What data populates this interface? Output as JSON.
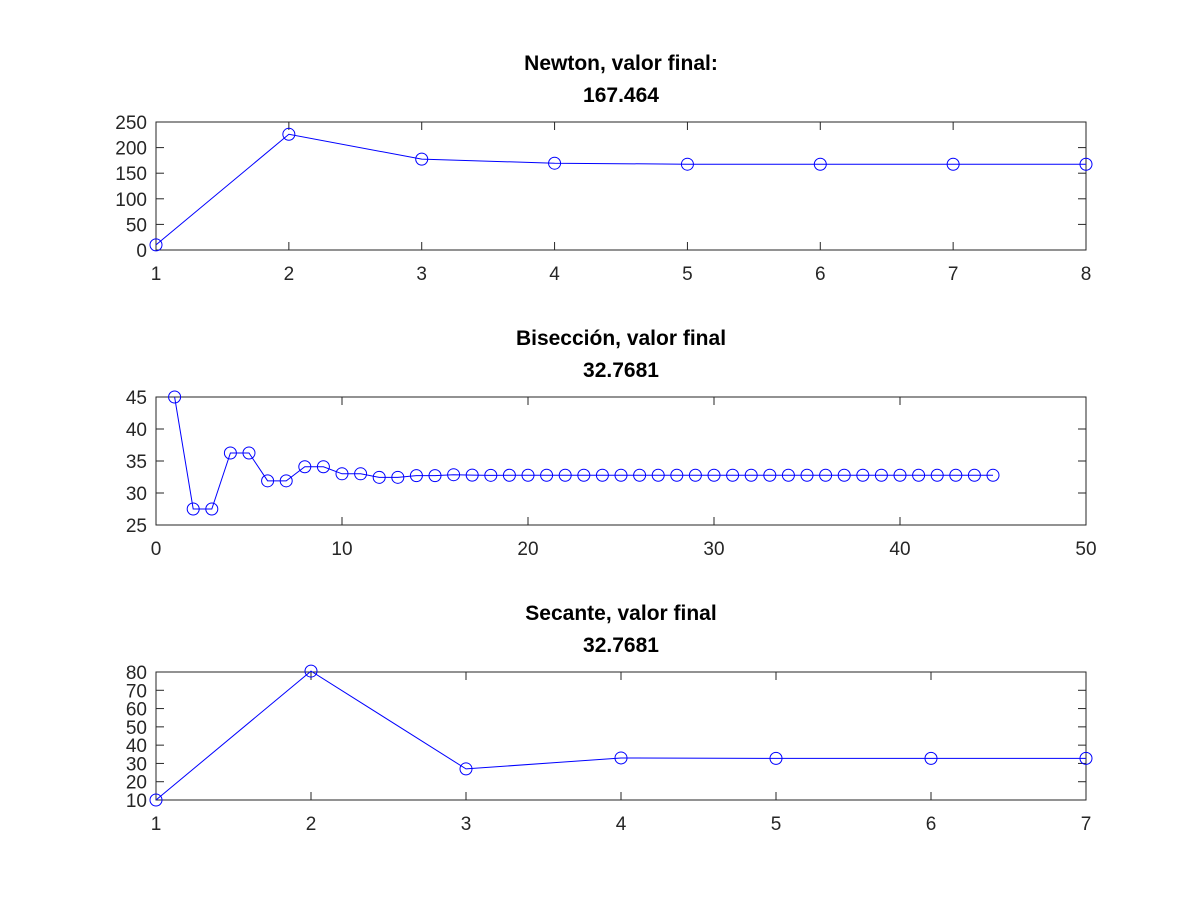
{
  "chart_data": [
    {
      "type": "line",
      "title": [
        "Newton, valor final:",
        "167.464"
      ],
      "x": [
        1,
        2,
        3,
        4,
        5,
        6,
        7,
        8
      ],
      "series": [
        {
          "values": [
            10,
            226,
            177.5,
            169.5,
            167.6,
            167.5,
            167.464,
            167.464
          ]
        }
      ],
      "xlim": [
        1,
        8
      ],
      "ylim": [
        0,
        250
      ],
      "xticks": [
        1,
        2,
        3,
        4,
        5,
        6,
        7,
        8
      ],
      "yticks": [
        0,
        50,
        100,
        150,
        200,
        250
      ],
      "marker": "circle",
      "color": "#0000ff"
    },
    {
      "type": "line",
      "title": [
        "Bisección, valor final",
        "32.7681"
      ],
      "x": [
        1,
        2,
        3,
        4,
        5,
        6,
        7,
        8,
        9,
        10,
        11,
        12,
        13,
        14,
        15,
        16,
        17,
        18,
        19,
        20,
        21,
        22,
        23,
        24,
        25,
        26,
        27,
        28,
        29,
        30,
        31,
        32,
        33,
        34,
        35,
        36,
        37,
        38,
        39,
        40,
        41,
        42,
        43,
        44,
        45
      ],
      "series": [
        {
          "values": [
            45,
            27.5,
            27.5,
            36.25,
            36.25,
            31.9,
            31.9,
            34.1,
            34.1,
            33.0,
            33.0,
            32.45,
            32.45,
            32.72,
            32.72,
            32.86,
            32.79,
            32.76,
            32.77,
            32.77,
            32.77,
            32.77,
            32.77,
            32.77,
            32.77,
            32.77,
            32.77,
            32.77,
            32.77,
            32.77,
            32.77,
            32.77,
            32.77,
            32.77,
            32.77,
            32.77,
            32.77,
            32.77,
            32.77,
            32.77,
            32.77,
            32.77,
            32.77,
            32.77,
            32.7681
          ]
        }
      ],
      "xlim": [
        0,
        50
      ],
      "ylim": [
        25,
        45
      ],
      "xticks": [
        0,
        10,
        20,
        30,
        40,
        50
      ],
      "yticks": [
        25,
        30,
        35,
        40,
        45
      ],
      "marker": "circle",
      "color": "#0000ff"
    },
    {
      "type": "line",
      "title": [
        "Secante, valor final",
        "32.7681"
      ],
      "x": [
        1,
        2,
        3,
        4,
        5,
        6,
        7
      ],
      "series": [
        {
          "values": [
            10,
            80.5,
            27,
            33,
            32.77,
            32.77,
            32.7681
          ]
        }
      ],
      "xlim": [
        1,
        7
      ],
      "ylim": [
        10,
        80
      ],
      "xticks": [
        1,
        2,
        3,
        4,
        5,
        6,
        7
      ],
      "yticks": [
        10,
        20,
        30,
        40,
        50,
        60,
        70,
        80
      ],
      "marker": "circle",
      "color": "#0000ff"
    }
  ]
}
